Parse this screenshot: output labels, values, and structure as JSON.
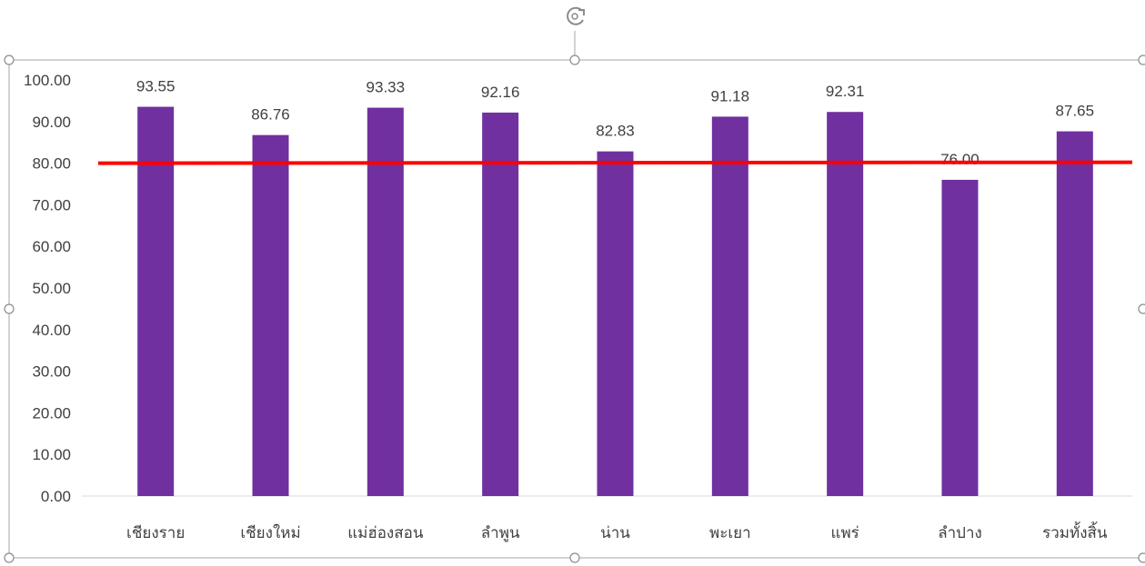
{
  "colors": {
    "bar": "#7030a0",
    "reference_line": "#ff0000",
    "axis_text": "#404040",
    "axis_line": "#d9d9d9",
    "selection_frame": "#a6a6a6"
  },
  "selection": {
    "rotate_handle_icon": "rotate-handle-icon",
    "handles": [
      "top-left",
      "top-center",
      "top-right",
      "middle-left",
      "middle-right",
      "bottom-left",
      "bottom-center",
      "bottom-right"
    ]
  },
  "chart_data": {
    "type": "bar",
    "title": "",
    "xlabel": "",
    "ylabel": "",
    "categories": [
      "เชียงราย",
      "เชียงใหม่",
      "แม่ฮ่องสอน",
      "ลำพูน",
      "น่าน",
      "พะเยา",
      "แพร่",
      "ลำปาง",
      "รวมทั้งสิ้น"
    ],
    "values": [
      93.55,
      86.76,
      93.33,
      92.16,
      82.83,
      91.18,
      92.31,
      76.0,
      87.65
    ],
    "data_labels": [
      "93.55",
      "86.76",
      "93.33",
      "92.16",
      "82.83",
      "91.18",
      "92.31",
      "76.00",
      "87.65"
    ],
    "ylim": [
      0,
      100
    ],
    "yticks": [
      "0.00",
      "10.00",
      "20.00",
      "30.00",
      "40.00",
      "50.00",
      "60.00",
      "70.00",
      "80.00",
      "90.00",
      "100.00"
    ],
    "reference_line": {
      "value": 80
    },
    "grid": false,
    "legend": "none"
  }
}
